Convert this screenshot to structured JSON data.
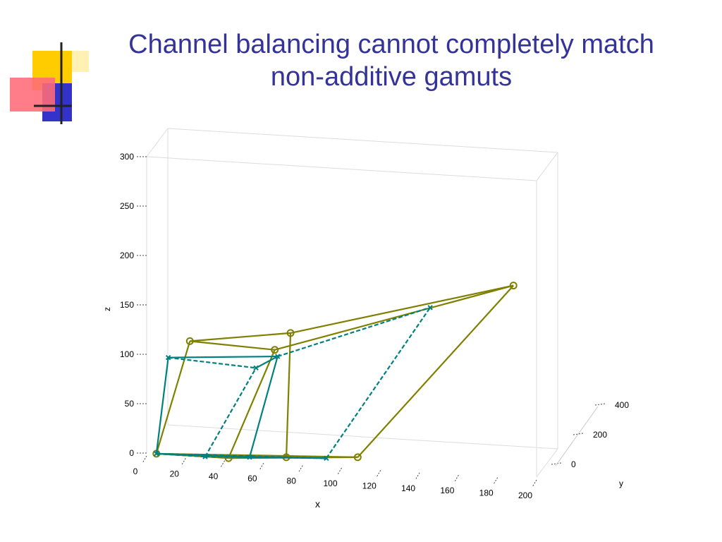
{
  "slide": {
    "title_line1": "Channel balancing cannot completely match",
    "title_line2": "non-additive gamuts"
  },
  "colors": {
    "title": "#333399",
    "series_olive": "#808000",
    "series_teal": "#008080",
    "deco_yellow": "#ffcc00",
    "deco_red": "#ff3333",
    "deco_blue": "#3333cc"
  },
  "chart_data": {
    "type": "scatter",
    "subtype": "3d-line-wireframe",
    "title": "",
    "xlabel": "x",
    "ylabel": "y",
    "zlabel": "z",
    "xlim": [
      0,
      200
    ],
    "ylim": [
      0,
      400
    ],
    "zlim": [
      0,
      300
    ],
    "x_ticks": [
      "0",
      "20",
      "40",
      "60",
      "80",
      "100",
      "120",
      "140",
      "160",
      "180",
      "200"
    ],
    "y_ticks": [
      "0",
      "200",
      "400"
    ],
    "z_ticks": [
      "0",
      "50",
      "100",
      "150",
      "200",
      "250",
      "300"
    ],
    "grid": false,
    "box": true,
    "series": [
      {
        "marker": "circle",
        "line": "solid",
        "color": "#808000",
        "points": [
          {
            "x": 5,
            "y": 0,
            "z": 0
          },
          {
            "x": 42,
            "y": 0,
            "z": 0
          },
          {
            "x": 70,
            "y": 60,
            "z": 0
          },
          {
            "x": 105,
            "y": 120,
            "z": 0
          },
          {
            "x": 20,
            "y": 80,
            "z": 110
          },
          {
            "x": 63,
            "y": 100,
            "z": 105
          },
          {
            "x": 70,
            "y": 140,
            "z": 120
          },
          {
            "x": 180,
            "y": 300,
            "z": 170
          }
        ],
        "edges": [
          [
            0,
            1
          ],
          [
            0,
            2
          ],
          [
            0,
            3
          ],
          [
            0,
            4
          ],
          [
            4,
            5
          ],
          [
            4,
            6
          ],
          [
            6,
            7
          ],
          [
            5,
            7
          ],
          [
            1,
            5
          ],
          [
            2,
            6
          ],
          [
            3,
            7
          ],
          [
            2,
            3
          ],
          [
            1,
            3
          ]
        ]
      },
      {
        "marker": "x",
        "line": "solid+dashed",
        "color": "#008080",
        "points": [
          {
            "x": 5,
            "y": 0,
            "z": 0
          },
          {
            "x": 30,
            "y": 0,
            "z": 0
          },
          {
            "x": 52,
            "y": 30,
            "z": 0
          },
          {
            "x": 90,
            "y": 80,
            "z": 0
          },
          {
            "x": 10,
            "y": 40,
            "z": 95
          },
          {
            "x": 55,
            "y": 40,
            "z": 90
          },
          {
            "x": 65,
            "y": 80,
            "z": 100
          },
          {
            "x": 140,
            "y": 200,
            "z": 150
          }
        ],
        "edges": [
          [
            0,
            1
          ],
          [
            0,
            2
          ],
          [
            0,
            3
          ],
          [
            0,
            4
          ],
          [
            4,
            5
          ],
          [
            5,
            6
          ],
          [
            6,
            7
          ],
          [
            4,
            6
          ],
          [
            1,
            5
          ],
          [
            2,
            6
          ],
          [
            3,
            7
          ],
          [
            2,
            3
          ],
          [
            1,
            3
          ]
        ]
      }
    ]
  }
}
